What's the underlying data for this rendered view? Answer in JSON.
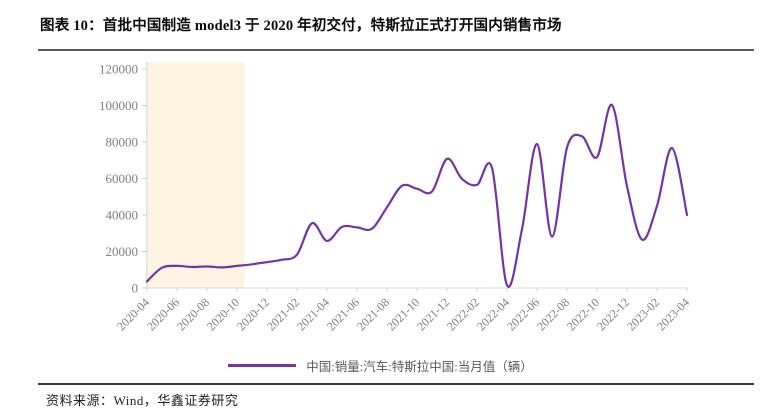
{
  "header": {
    "title": "图表 10：首批中国制造 model3 于 2020 年初交付，特斯拉正式打开国内销售市场"
  },
  "legend": {
    "label": "中国:销量:汽车:特斯拉中国:当月值（辆）"
  },
  "footer": {
    "source": "资料来源：Wind，华鑫证券研究"
  },
  "colors": {
    "line": "#7434A4",
    "highlight": "#FCF5E2",
    "axis": "#D8D8D8",
    "tick": "#CCCCCC",
    "tick_label": "#808080",
    "legend_text": "#595959"
  },
  "chart_data": {
    "type": "line",
    "title": "",
    "xlabel": "",
    "ylabel": "",
    "x": [
      "2020-04",
      "2020-05",
      "2020-06",
      "2020-07",
      "2020-08",
      "2020-09",
      "2020-10",
      "2020-11",
      "2020-12",
      "2021-01",
      "2021-02",
      "2021-03",
      "2021-04",
      "2021-05",
      "2021-06",
      "2021-07",
      "2021-08",
      "2021-09",
      "2021-10",
      "2021-11",
      "2021-12",
      "2022-01",
      "2022-02",
      "2022-03",
      "2022-04",
      "2022-05",
      "2022-06",
      "2022-07",
      "2022-08",
      "2022-09",
      "2022-10",
      "2022-11",
      "2022-12",
      "2023-01",
      "2023-02",
      "2023-03",
      "2023-04"
    ],
    "series": [
      {
        "name": "中国:销量:汽车:特斯拉中国:当月值（辆）",
        "values": [
          3600,
          11100,
          12100,
          11500,
          11800,
          11300,
          12100,
          13000,
          14200,
          15500,
          18300,
          35500,
          25800,
          33500,
          33200,
          32500,
          44300,
          56000,
          54400,
          52900,
          70800,
          59800,
          56500,
          65800,
          1500,
          32200,
          78900,
          28200,
          77000,
          83100,
          71700,
          100300,
          55800,
          26500,
          45000,
          76700,
          40000
        ]
      }
    ],
    "x_tick_labels": [
      "2020-04",
      "2020-06",
      "2020-08",
      "2020-10",
      "2020-12",
      "2021-02",
      "2021-04",
      "2021-06",
      "2021-08",
      "2021-10",
      "2021-12",
      "2022-02",
      "2022-04",
      "2022-06",
      "2022-08",
      "2022-10",
      "2022-12",
      "2023-02",
      "2023-04"
    ],
    "y_ticks": [
      0,
      20000,
      40000,
      60000,
      80000,
      100000,
      120000
    ],
    "ylim": [
      0,
      120000
    ],
    "highlight_region": {
      "from": "2020-04",
      "to": "2020-10"
    },
    "legend_position": "bottom",
    "grid": false,
    "smooth": true
  }
}
